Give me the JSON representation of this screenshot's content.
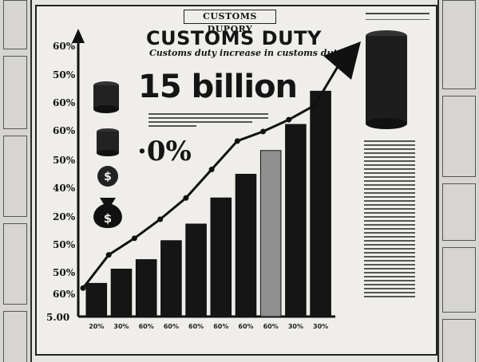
{
  "masthead": "CUSTOMS DUPORY",
  "headline": "CUSTOMS DUTY",
  "subhead": "Customs duty increase in customs duty",
  "big_figure": "15 billion",
  "percent_callout": "·0%",
  "colors": {
    "ink": "#151515",
    "paper": "#efeeea",
    "highlight": "#8f8f8f"
  },
  "icons": [
    "coin-stack-icon",
    "money-bag-icon",
    "dollar-coin-icon",
    "scales-icon",
    "butterfly-icon",
    "box-icon"
  ],
  "chart_data": {
    "type": "bar",
    "y_tick_labels": [
      "60%",
      "50%",
      "60%",
      "60%",
      "50%",
      "40%",
      "20%",
      "50%",
      "50%",
      "60%",
      "5.00"
    ],
    "x_tick_labels": [
      "20%",
      "30%",
      "60%",
      "60%",
      "60%",
      "60%",
      "60%",
      "60%",
      "30%",
      "30%"
    ],
    "values": [
      14,
      20,
      24,
      32,
      39,
      50,
      60,
      70,
      81,
      95
    ],
    "highlight_index": 7,
    "trend_line": [
      12,
      26,
      33,
      41,
      50,
      62,
      74,
      78,
      83,
      89,
      112
    ],
    "ylim": [
      0,
      120
    ],
    "grid": false,
    "legend": "none"
  }
}
